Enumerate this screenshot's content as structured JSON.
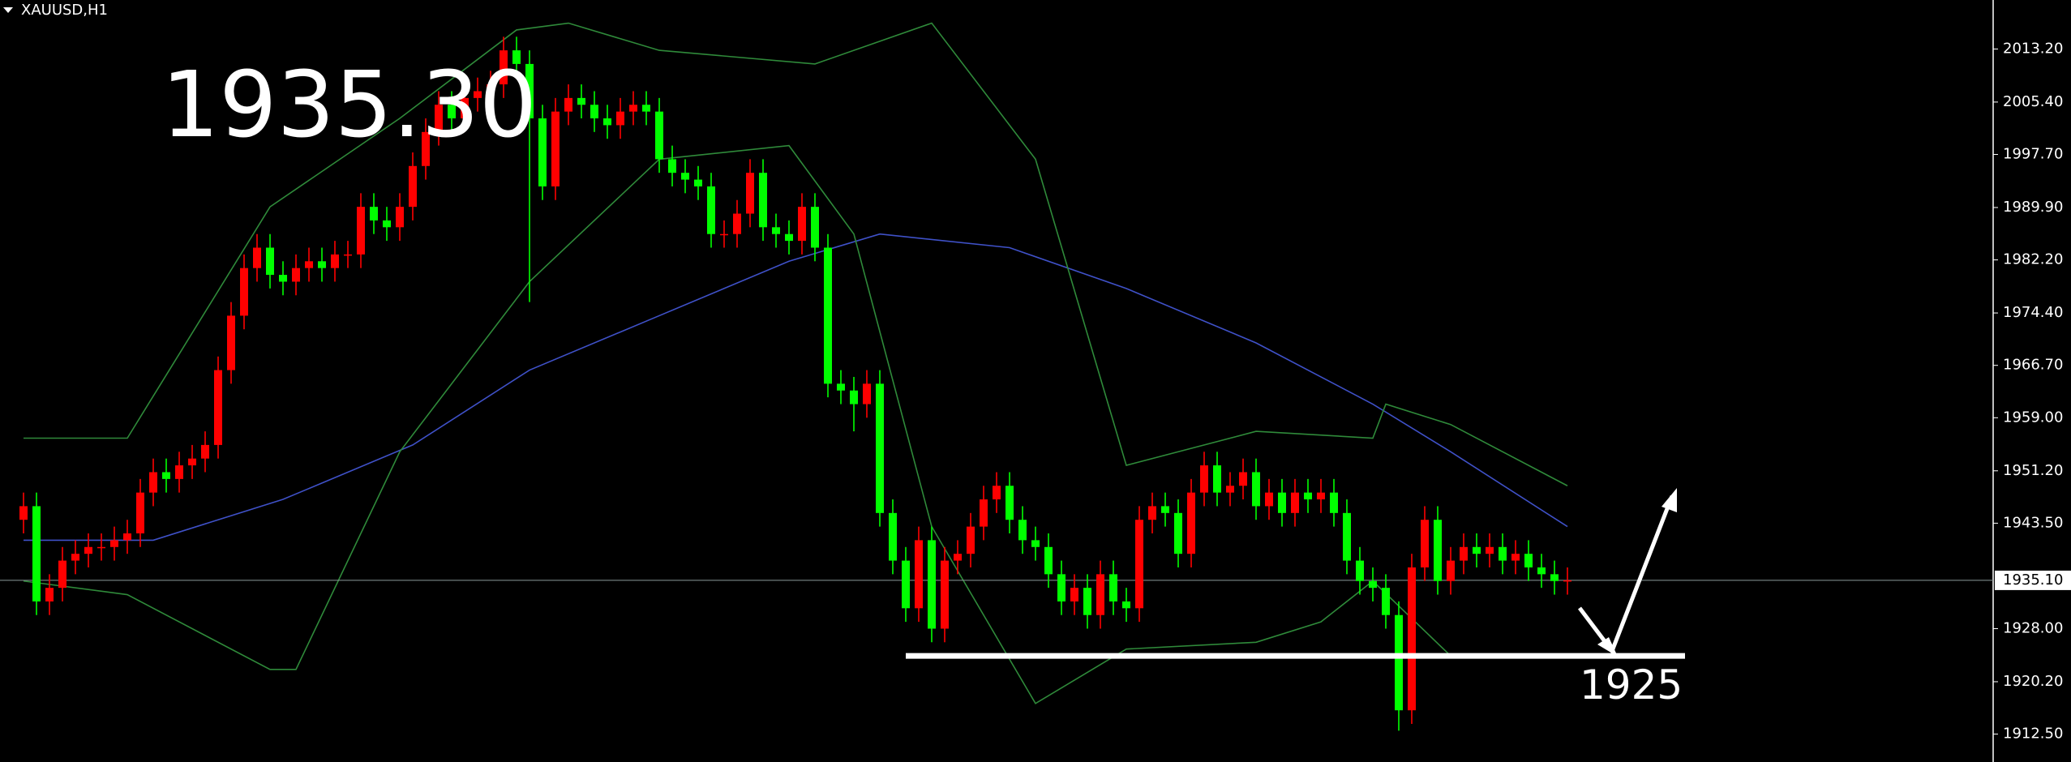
{
  "chart_data": {
    "type": "candlestick",
    "title": "XAUUSD,H1",
    "annotations": [
      "1935.30",
      "1925"
    ],
    "up_color": "#ff0000",
    "down_color": "#00ff00",
    "ylim": [
      1908.4,
      2020.4
    ],
    "yticks": [
      {
        "value": 2013.2,
        "label": "2013.20"
      },
      {
        "value": 2005.4,
        "label": "2005.40"
      },
      {
        "value": 1997.7,
        "label": "1997.70"
      },
      {
        "value": 1989.9,
        "label": "1989.90"
      },
      {
        "value": 1982.2,
        "label": "1982.20"
      },
      {
        "value": 1974.4,
        "label": "1974.40"
      },
      {
        "value": 1966.7,
        "label": "1966.70"
      },
      {
        "value": 1959.0,
        "label": "1959.00"
      },
      {
        "value": 1951.2,
        "label": "1951.20"
      },
      {
        "value": 1943.5,
        "label": "1943.50"
      },
      {
        "value": 1928.0,
        "label": "1928.00"
      },
      {
        "value": 1920.2,
        "label": "1920.20"
      },
      {
        "value": 1912.5,
        "label": "1912.50"
      }
    ],
    "current_price": {
      "value": 1935.1,
      "label": "1935.10"
    },
    "support_level": 1924,
    "open": [
      1944,
      1946,
      1932,
      1934,
      1938,
      1939,
      1940,
      1940,
      1941,
      1942,
      1948,
      1951,
      1950,
      1952,
      1953,
      1955,
      1966,
      1974,
      1981,
      1984,
      1980,
      1979,
      1981,
      1982,
      1981,
      1983,
      1983,
      1990,
      1988,
      1987,
      1990,
      1996,
      2001,
      2005,
      2003,
      2006,
      2007,
      2008,
      2013,
      2011,
      2003,
      1993,
      2004,
      2006,
      2005,
      2003,
      2002,
      2004,
      2005,
      2004,
      1997,
      1995,
      1994,
      1993,
      1986,
      1986,
      1989,
      1995,
      1987,
      1986,
      1985,
      1990,
      1984,
      1964,
      1963,
      1961,
      1964,
      1945,
      1938,
      1931,
      1941,
      1928,
      1938,
      1939,
      1943,
      1947,
      1949,
      1944,
      1941,
      1940,
      1936,
      1932,
      1934,
      1930,
      1936,
      1932,
      1931,
      1944,
      1946,
      1945,
      1939,
      1948,
      1952,
      1948,
      1949,
      1951,
      1946,
      1948,
      1945,
      1948,
      1947,
      1948,
      1945,
      1938,
      1935,
      1934,
      1930,
      1916,
      1937,
      1944,
      1935,
      1938,
      1940,
      1939,
      1940,
      1938,
      1939,
      1937,
      1936,
      1935
    ],
    "high": [
      1948,
      1948,
      1936,
      1940,
      1941,
      1942,
      1942,
      1943,
      1944,
      1950,
      1953,
      1953,
      1954,
      1955,
      1957,
      1968,
      1976,
      1983,
      1986,
      1986,
      1982,
      1983,
      1984,
      1984,
      1985,
      1985,
      1992,
      1992,
      1990,
      1992,
      1998,
      2003,
      2007,
      2007,
      2008,
      2009,
      2010,
      2015,
      2015,
      2013,
      2005,
      2006,
      2008,
      2008,
      2007,
      2005,
      2006,
      2007,
      2007,
      2006,
      1999,
      1997,
      1996,
      1995,
      1988,
      1991,
      1997,
      1997,
      1989,
      1988,
      1992,
      1992,
      1986,
      1966,
      1965,
      1966,
      1966,
      1947,
      1940,
      1943,
      1943,
      1940,
      1941,
      1945,
      1949,
      1951,
      1951,
      1946,
      1943,
      1942,
      1938,
      1936,
      1936,
      1938,
      1938,
      1934,
      1946,
      1948,
      1948,
      1947,
      1950,
      1954,
      1954,
      1951,
      1953,
      1953,
      1950,
      1950,
      1950,
      1950,
      1950,
      1950,
      1947,
      1940,
      1937,
      1936,
      1932,
      1939,
      1946,
      1946,
      1940,
      1942,
      1942,
      1942,
      1942,
      1941,
      1941,
      1939,
      1938,
      1937
    ],
    "low": [
      1942,
      1930,
      1930,
      1932,
      1936,
      1937,
      1938,
      1938,
      1939,
      1940,
      1946,
      1948,
      1948,
      1950,
      1951,
      1953,
      1964,
      1972,
      1979,
      1978,
      1977,
      1977,
      1979,
      1979,
      1979,
      1981,
      1981,
      1986,
      1985,
      1985,
      1988,
      1994,
      1999,
      2001,
      2001,
      2004,
      2005,
      2006,
      2009,
      1976,
      1991,
      1991,
      2002,
      2003,
      2001,
      2000,
      2000,
      2002,
      2002,
      1995,
      1993,
      1992,
      1991,
      1984,
      1984,
      1984,
      1987,
      1985,
      1984,
      1983,
      1983,
      1982,
      1962,
      1961,
      1957,
      1959,
      1943,
      1936,
      1929,
      1929,
      1926,
      1926,
      1936,
      1937,
      1941,
      1945,
      1942,
      1939,
      1938,
      1934,
      1930,
      1930,
      1928,
      1928,
      1930,
      1929,
      1929,
      1942,
      1943,
      1937,
      1937,
      1946,
      1946,
      1946,
      1947,
      1944,
      1944,
      1943,
      1943,
      1945,
      1945,
      1943,
      1936,
      1933,
      1932,
      1928,
      1913,
      1914,
      1935,
      1933,
      1933,
      1936,
      1937,
      1937,
      1936,
      1936,
      1935,
      1934,
      1933,
      1933
    ],
    "close": [
      1946,
      1932,
      1934,
      1938,
      1939,
      1940,
      1940,
      1941,
      1942,
      1948,
      1951,
      1950,
      1952,
      1953,
      1955,
      1966,
      1974,
      1981,
      1984,
      1980,
      1979,
      1981,
      1982,
      1981,
      1983,
      1983,
      1990,
      1988,
      1987,
      1990,
      1996,
      2001,
      2005,
      2003,
      2006,
      2007,
      2008,
      2013,
      2011,
      2003,
      1993,
      2004,
      2006,
      2005,
      2003,
      2002,
      2004,
      2005,
      2004,
      1997,
      1995,
      1994,
      1993,
      1986,
      1986,
      1989,
      1995,
      1987,
      1986,
      1985,
      1990,
      1984,
      1964,
      1963,
      1961,
      1964,
      1945,
      1938,
      1931,
      1941,
      1928,
      1938,
      1939,
      1943,
      1947,
      1949,
      1944,
      1941,
      1940,
      1936,
      1932,
      1934,
      1930,
      1936,
      1932,
      1931,
      1944,
      1946,
      1945,
      1939,
      1948,
      1952,
      1948,
      1949,
      1951,
      1946,
      1948,
      1945,
      1948,
      1947,
      1948,
      1945,
      1938,
      1935,
      1934,
      1930,
      1916,
      1937,
      1944,
      1935,
      1938,
      1940,
      1939,
      1940,
      1938,
      1939,
      1937,
      1936,
      1935,
      1935.1
    ],
    "overlays": [
      {
        "color": "#3f51c8",
        "x": [
          0,
          10,
          20,
          30,
          39,
          49,
          59,
          66,
          76,
          85,
          95,
          104,
          110,
          119
        ],
        "values": [
          1941,
          1941,
          1947,
          1955,
          1966,
          1974,
          1982,
          1986,
          1984,
          1978,
          1970,
          1961,
          1954,
          1943
        ]
      },
      {
        "color": "#2f8a3a",
        "x": [
          0,
          8,
          19,
          29,
          38,
          42,
          49,
          61,
          70,
          78,
          85,
          95,
          104,
          105,
          110,
          119
        ],
        "values": [
          1956,
          1956,
          1990,
          2003,
          2016,
          2017,
          2013,
          2011,
          2017,
          1997,
          1952,
          1957,
          1956,
          1961,
          1958,
          1949
        ]
      },
      {
        "color": "#2f8a3a",
        "x": [
          0,
          8,
          19,
          21,
          29,
          39,
          49,
          59,
          64,
          70,
          78,
          85,
          95,
          100,
          104,
          110,
          119
        ],
        "values": [
          1935,
          1933,
          1922,
          1922,
          1954,
          1979,
          1997,
          1999,
          1986,
          1943,
          1917,
          1925,
          1926,
          1929,
          1935,
          1924,
          1924
        ]
      }
    ]
  }
}
